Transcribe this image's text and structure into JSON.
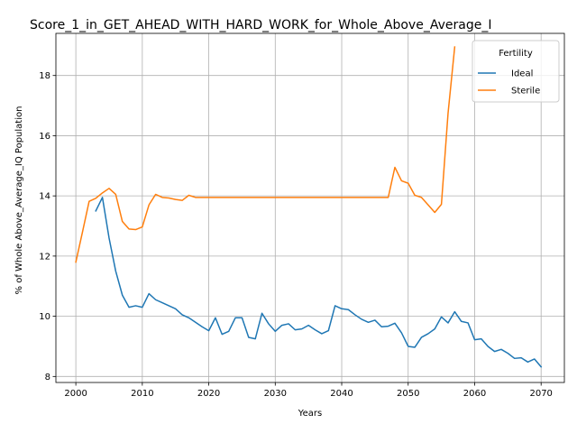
{
  "chart_data": {
    "type": "line",
    "title": "Score_1_in_GET_AHEAD_WITH_HARD_WORK_for_Whole_Above_Average_I",
    "xlabel": "Years",
    "ylabel": "% of Whole Above_Average_IQ Population",
    "xlim": [
      1997,
      2073.5
    ],
    "ylim": [
      7.8,
      19.4
    ],
    "xticks": [
      2000,
      2010,
      2020,
      2030,
      2040,
      2050,
      2060,
      2070
    ],
    "yticks": [
      8,
      10,
      12,
      14,
      16,
      18
    ],
    "grid": true,
    "legend": {
      "title": "Fertility",
      "placement": "top-right"
    },
    "series": [
      {
        "name": "Ideal",
        "color": "#1f77b4",
        "x": [
          2003,
          2004,
          2005,
          2006,
          2007,
          2008,
          2009,
          2010,
          2011,
          2012,
          2013,
          2014,
          2015,
          2016,
          2017,
          2018,
          2019,
          2020,
          2021,
          2022,
          2023,
          2024,
          2025,
          2026,
          2027,
          2028,
          2029,
          2030,
          2031,
          2032,
          2033,
          2034,
          2035,
          2036,
          2037,
          2038,
          2039,
          2040,
          2041,
          2042,
          2043,
          2044,
          2045,
          2046,
          2047,
          2048,
          2049,
          2050,
          2051,
          2052,
          2053,
          2054,
          2055,
          2056,
          2057,
          2058,
          2059,
          2060,
          2061,
          2062,
          2063,
          2064,
          2065,
          2066,
          2067,
          2068,
          2069,
          2070
        ],
        "values": [
          13.5,
          13.95,
          12.6,
          11.5,
          10.7,
          10.3,
          10.35,
          10.3,
          10.75,
          10.55,
          10.45,
          10.35,
          10.25,
          10.05,
          9.95,
          9.8,
          9.65,
          9.52,
          9.95,
          9.4,
          9.5,
          9.95,
          9.95,
          9.3,
          9.25,
          10.1,
          9.75,
          9.5,
          9.7,
          9.75,
          9.55,
          9.58,
          9.7,
          9.55,
          9.42,
          9.52,
          10.35,
          10.25,
          10.22,
          10.05,
          9.9,
          9.8,
          9.87,
          9.65,
          9.67,
          9.77,
          9.45,
          9.0,
          8.97,
          9.3,
          9.42,
          9.58,
          9.98,
          9.78,
          10.15,
          9.83,
          9.78,
          9.22,
          9.25,
          9.0,
          8.83,
          8.9,
          8.77,
          8.6,
          8.62,
          8.48,
          8.58,
          8.32
        ]
      },
      {
        "name": "Sterile",
        "color": "#ff7f0e",
        "x": [
          2000,
          2001,
          2002,
          2003,
          2004,
          2005,
          2006,
          2007,
          2008,
          2009,
          2010,
          2011,
          2012,
          2013,
          2014,
          2015,
          2016,
          2017,
          2018,
          2019,
          2020,
          2025,
          2030,
          2035,
          2040,
          2045,
          2047,
          2048,
          2049,
          2050,
          2051,
          2052,
          2053,
          2054,
          2055,
          2056,
          2057
        ],
        "values": [
          11.8,
          12.8,
          13.82,
          13.92,
          14.1,
          14.25,
          14.05,
          13.15,
          12.9,
          12.88,
          12.97,
          13.7,
          14.05,
          13.95,
          13.93,
          13.88,
          13.85,
          14.02,
          13.95,
          13.95,
          13.95,
          13.95,
          13.95,
          13.95,
          13.95,
          13.95,
          13.95,
          14.95,
          14.5,
          14.42,
          14.02,
          13.95,
          13.7,
          13.45,
          13.72,
          16.75,
          18.95
        ]
      }
    ]
  }
}
